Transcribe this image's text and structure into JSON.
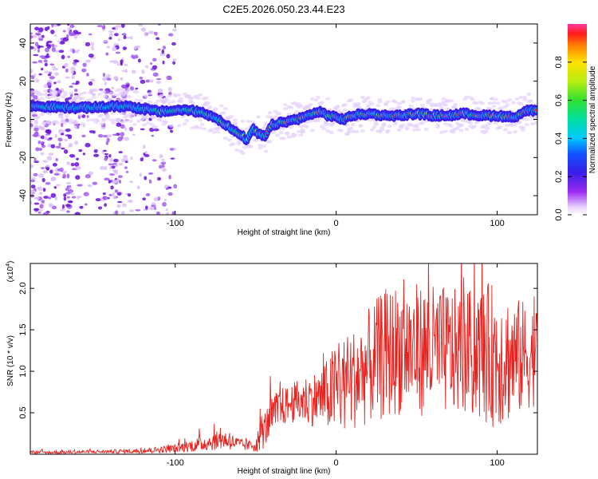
{
  "title": "C2E5.2026.050.23.44.E23",
  "chart_data": [
    {
      "type": "heatmap",
      "name": "spectrogram",
      "xlabel": "Height of straight line (km)",
      "ylabel": "Frequency (Hz)",
      "xlim": [
        -190,
        125
      ],
      "ylim": [
        -50,
        50
      ],
      "xticks": [
        -100,
        0,
        100
      ],
      "yticks": [
        -40,
        -20,
        0,
        20,
        40
      ],
      "colorbar": {
        "label": "Normalized spectral amplitude",
        "range": [
          0,
          1
        ],
        "ticks": [
          "0.0",
          "0.2",
          "0.4",
          "0.6",
          "0.8"
        ]
      },
      "ridge": {
        "description": "dominant frequency ridge (Hz) vs height (km)",
        "x": [
          -190,
          -160,
          -130,
          -110,
          -95,
          -85,
          -75,
          -68,
          -62,
          -58,
          -55,
          -52,
          -48,
          -44,
          -40,
          -35,
          -30,
          -25,
          -20,
          -15,
          -10,
          -5,
          0,
          5,
          10,
          20,
          30,
          40,
          50,
          60,
          70,
          80,
          90,
          100,
          110,
          115,
          120,
          125
        ],
        "y": [
          7,
          6,
          7,
          4,
          5,
          4,
          1,
          -3,
          -7,
          -9,
          -11,
          -5,
          -8,
          -9,
          -3,
          -2,
          -1,
          0,
          1,
          3,
          4,
          2,
          1,
          0,
          2,
          3,
          2,
          2,
          3,
          2,
          2,
          3,
          2,
          2,
          1,
          3,
          5,
          4
        ]
      },
      "noise_region": [
        -190,
        -120
      ]
    },
    {
      "type": "line",
      "name": "snr",
      "xlabel": "Height of straight line (km)",
      "ylabel": "SNR (10 * v/v)",
      "scale_label": "(x10",
      "scale_exponent": "4",
      "scale_close": ")",
      "xlim": [
        -190,
        125
      ],
      "ylim": [
        0,
        2.3
      ],
      "xticks": [
        -100,
        0,
        100
      ],
      "yticks": [
        "0.5",
        "1.0",
        "1.5",
        "2.0"
      ],
      "series": [
        {
          "name": "SNR",
          "color": "#e8231f",
          "envelope_x": [
            -190,
            -150,
            -120,
            -100,
            -85,
            -70,
            -60,
            -55,
            -50,
            -45,
            -40,
            -35,
            -30,
            -20,
            -10,
            -5,
            0,
            10,
            20,
            30,
            40,
            60,
            80,
            100,
            110,
            125
          ],
          "envelope_mean": [
            0.02,
            0.03,
            0.04,
            0.07,
            0.12,
            0.18,
            0.12,
            0.1,
            0.12,
            0.28,
            0.45,
            0.55,
            0.6,
            0.65,
            0.68,
            0.72,
            0.78,
            0.9,
            1.05,
            1.2,
            1.28,
            1.25,
            1.22,
            1.2,
            1.15,
            1.2
          ],
          "envelope_spread": [
            0.02,
            0.02,
            0.03,
            0.05,
            0.09,
            0.12,
            0.08,
            0.06,
            0.1,
            0.22,
            0.25,
            0.25,
            0.22,
            0.3,
            0.35,
            0.45,
            0.6,
            0.6,
            0.7,
            0.8,
            0.8,
            0.8,
            0.75,
            0.9,
            0.75,
            0.6
          ]
        }
      ]
    }
  ]
}
